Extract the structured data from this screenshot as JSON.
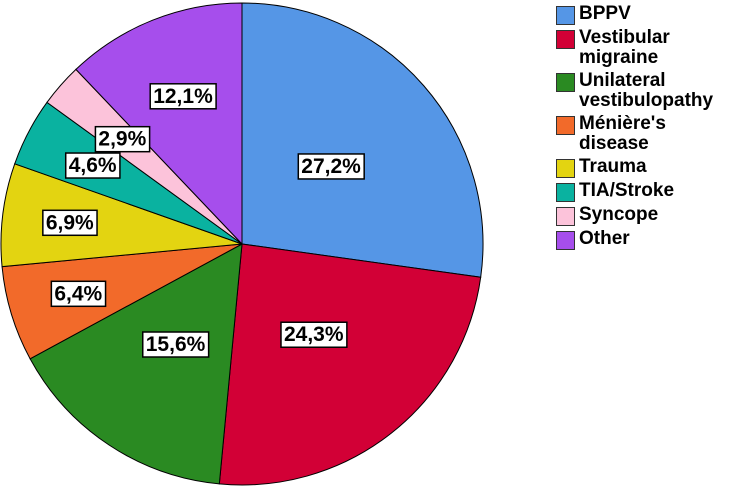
{
  "chart_data": {
    "type": "pie",
    "categories": [
      "BPPV",
      "Vestibular migraine",
      "Unilateral vestibulopathy",
      "Ménière's disease",
      "Trauma",
      "TIA/Stroke",
      "Syncope",
      "Other"
    ],
    "legend_labels": [
      "BPPV",
      "Vestibular\nmigraine",
      "Unilateral\nvestibulopathy",
      "Ménière's\ndisease",
      "Trauma",
      "TIA/Stroke",
      "Syncope",
      "Other"
    ],
    "values": [
      27.2,
      24.3,
      15.6,
      6.4,
      6.9,
      4.6,
      2.9,
      12.1
    ],
    "value_labels": [
      "27,2%",
      "24,3%",
      "15,6%",
      "6,4%",
      "6,9%",
      "4,6%",
      "2,9%",
      "12,1%"
    ],
    "colors": [
      "#5596e6",
      "#d20036",
      "#2a8a22",
      "#f26a2a",
      "#e3d411",
      "#0ab2a0",
      "#fcc3da",
      "#a64eec"
    ],
    "legend_placement": "right",
    "start_angle": "12 o'clock",
    "direction": "clockwise"
  }
}
